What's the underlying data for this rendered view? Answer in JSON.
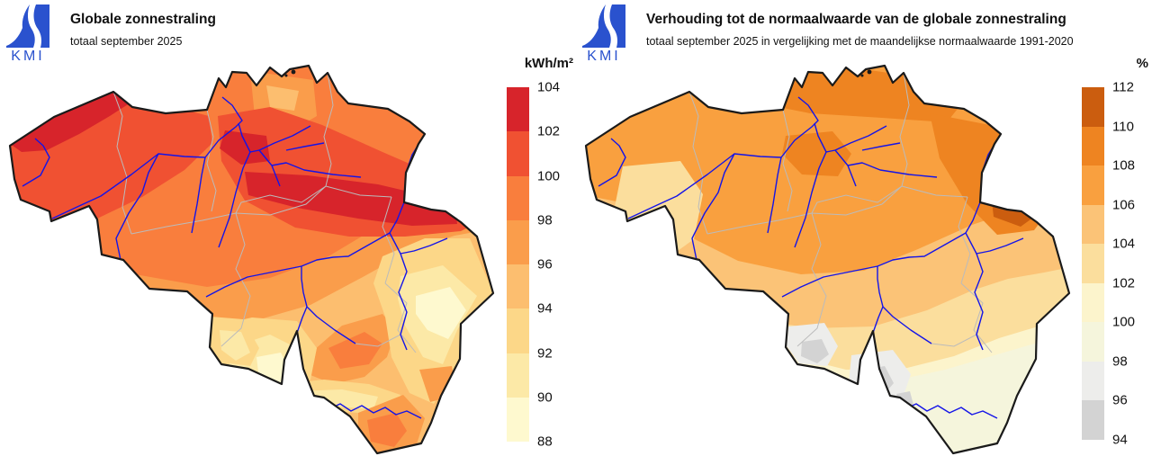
{
  "page": {
    "background": "#FFFFFF"
  },
  "branding": {
    "logo_text": "KMI",
    "logo_color": "#2A52CE"
  },
  "panels": [
    {
      "title": "Globale zonnestraling",
      "subtitle": "totaal september 2025",
      "legend": {
        "unit": "kWh/m²",
        "ticks": [
          "104",
          "102",
          "100",
          "98",
          "96",
          "94",
          "92",
          "90",
          "88"
        ],
        "colors": [
          "#D7242B",
          "#F05132",
          "#F97E3D",
          "#FA9D4B",
          "#FCBE6F",
          "#FCD788",
          "#FCE9A7",
          "#FEF9CF"
        ]
      }
    },
    {
      "title": "Verhouding tot de normaalwaarde van de globale zonnestraling",
      "subtitle": "totaal september 2025 in vergelijking met de maandelijkse normaalwaarde 1991-2020",
      "legend": {
        "unit": "%",
        "ticks": [
          "112",
          "110",
          "108",
          "106",
          "104",
          "102",
          "100",
          "98",
          "96",
          "94"
        ],
        "colors": [
          "#CB5D0F",
          "#EE8421",
          "#F9A03F",
          "#FBC377",
          "#FBDE9D",
          "#FCF4CC",
          "#F5F5DC",
          "#EDEDEB",
          "#D3D3D3"
        ]
      }
    }
  ],
  "map": {
    "country": "Belgium",
    "border_color": "#1A1A1A",
    "river_color": "#1414E8",
    "province_border_color": "#BBBBBB"
  }
}
